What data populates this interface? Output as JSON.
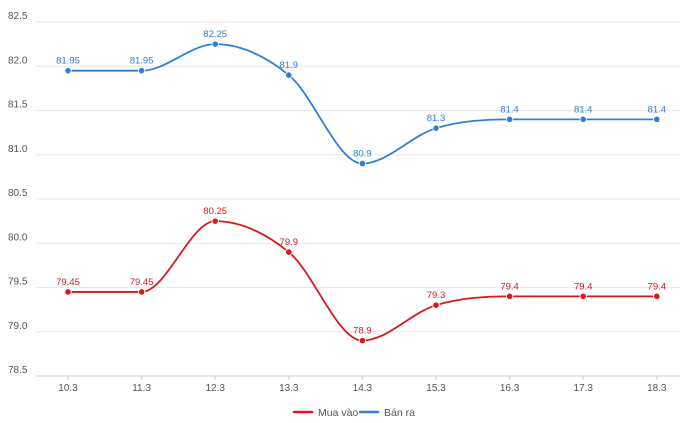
{
  "chart_data": {
    "type": "line",
    "categories": [
      "10.3",
      "11.3",
      "12.3",
      "13.3",
      "14.3",
      "15.3",
      "16.3",
      "17.3",
      "18.3"
    ],
    "series": [
      {
        "name": "Mua vào",
        "color": "#d7191c",
        "values": [
          79.45,
          79.45,
          80.25,
          79.9,
          78.9,
          79.3,
          79.4,
          79.4,
          79.4
        ],
        "labels": [
          "79.45",
          "79.45",
          "80.25",
          "79.9",
          "78.9",
          "79.3",
          "79.4",
          "79.4",
          "79.4"
        ]
      },
      {
        "name": "Bán ra",
        "color": "#2f7fd6",
        "values": [
          81.95,
          81.95,
          82.25,
          81.9,
          80.9,
          81.3,
          81.4,
          81.4,
          81.4
        ],
        "labels": [
          "81.95",
          "81.95",
          "82.25",
          "81.9",
          "80.9",
          "81.3",
          "81.4",
          "81.4",
          "81.4"
        ]
      }
    ],
    "y_ticks": [
      "78.5",
      "79.0",
      "79.5",
      "80.0",
      "80.5",
      "81.0",
      "81.5",
      "82.0",
      "82.5"
    ],
    "ylim": [
      78.5,
      82.5
    ],
    "smooth": true,
    "grid": true,
    "legend_position": "bottom-center",
    "title": "",
    "xlabel": "",
    "ylabel": ""
  }
}
